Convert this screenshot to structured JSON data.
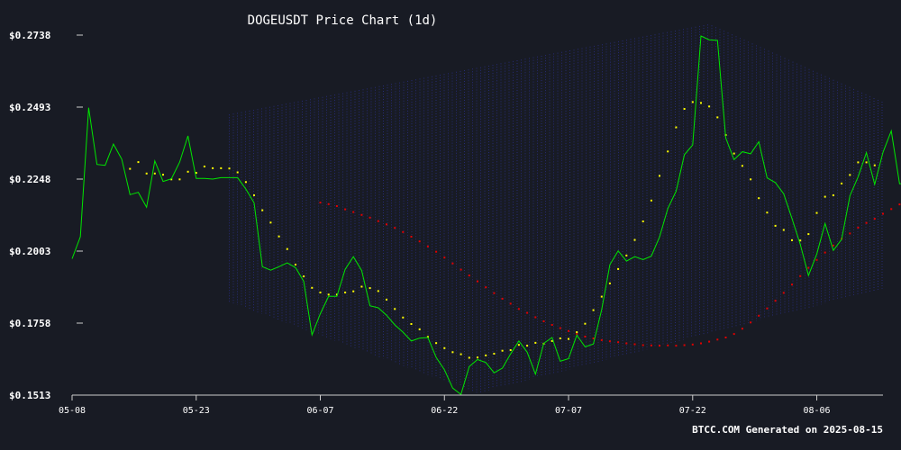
{
  "chart_data": {
    "type": "line",
    "title": "DOGEUSDT Price Chart (1d)",
    "footer": "BTCC.COM Generated on 2025-08-15",
    "ylim": [
      0.1513,
      0.2738
    ],
    "xlim": [
      "2025-05-08",
      "2025-08-14"
    ],
    "y_ticks": [
      "$0.2738",
      "$0.2493",
      "$0.2248",
      "$0.2003",
      "$0.1758",
      "$0.1513"
    ],
    "y_tick_values": [
      0.2738,
      0.2493,
      0.2248,
      0.2003,
      0.1758,
      0.1513
    ],
    "x_ticks": [
      "05-08",
      "05-23",
      "06-07",
      "06-22",
      "07-07",
      "07-22",
      "08-06"
    ],
    "x_tick_dates": [
      "2025-05-08",
      "2025-05-23",
      "2025-06-07",
      "2025-06-22",
      "2025-07-07",
      "2025-07-22",
      "2025-08-06"
    ],
    "grid": false,
    "legend": "none",
    "colors": {
      "background": "#181b24",
      "price": "#00e600",
      "ma_fast": "#ffff00",
      "ma_slow": "#e00000",
      "bands": "#2a2f8a",
      "text": "#ffffff",
      "axis": "#cccccc"
    },
    "series": [
      {
        "start_date": "2025-05-08",
        "values": [
          0.1977,
          0.2052,
          0.2491,
          0.2298,
          0.2295,
          0.2367,
          0.2316,
          0.2195,
          0.2203,
          0.2152,
          0.231,
          0.224,
          0.2249,
          0.2306,
          0.2395,
          0.225,
          0.225,
          0.2248,
          0.2253,
          0.2253,
          0.2253,
          0.2214,
          0.2167,
          0.195,
          0.1938,
          0.195,
          0.1963,
          0.1947,
          0.19,
          0.1718,
          0.179,
          0.1849,
          0.1849,
          0.1941,
          0.1984,
          0.1937,
          0.1817,
          0.181,
          0.1785,
          0.1752,
          0.1727,
          0.1697,
          0.1707,
          0.1709,
          0.1641,
          0.1599,
          0.1537,
          0.1515,
          0.161,
          0.1634,
          0.1624,
          0.1589,
          0.1605,
          0.1653,
          0.1697,
          0.1659,
          0.1584,
          0.1689,
          0.1709,
          0.1628,
          0.1637,
          0.1717,
          0.1677,
          0.1687,
          0.1804,
          0.1957,
          0.2004,
          0.1969,
          0.1984,
          0.1974,
          0.1986,
          0.2051,
          0.2148,
          0.2207,
          0.2331,
          0.2364,
          0.2735,
          0.2722,
          0.272,
          0.2388,
          0.2314,
          0.2341,
          0.2334,
          0.2375,
          0.2252,
          0.2236,
          0.2198,
          0.2114,
          0.2026,
          0.192,
          0.1993,
          0.2097,
          0.2005,
          0.2043,
          0.2191,
          0.2256,
          0.2338,
          0.223,
          0.2339,
          0.2412,
          0.2232,
          0.2234
        ]
      },
      {
        "start_date": "2025-05-15",
        "values": [
          0.2283,
          0.2306,
          0.2267,
          0.2267,
          0.2263,
          0.2247,
          0.2247,
          0.2273,
          0.2269,
          0.2291,
          0.2285,
          0.2285,
          0.2284,
          0.2271,
          0.2238,
          0.2193,
          0.2142,
          0.21,
          0.2053,
          0.201,
          0.1957,
          0.1917,
          0.1878,
          0.1862,
          0.1855,
          0.1855,
          0.1862,
          0.1866,
          0.1882,
          0.1877,
          0.1867,
          0.1838,
          0.1806,
          0.1777,
          0.1755,
          0.1737,
          0.1711,
          0.169,
          0.1673,
          0.1659,
          0.1652,
          0.164,
          0.1641,
          0.1648,
          0.1654,
          0.1664,
          0.1666,
          0.1684,
          0.1681,
          0.1691,
          0.1688,
          0.1697,
          0.1706,
          0.1704,
          0.1727,
          0.1756,
          0.1802,
          0.1848,
          0.1893,
          0.1942,
          0.1988,
          0.2041,
          0.2104,
          0.2175,
          0.2259,
          0.2342,
          0.2424,
          0.2487,
          0.251,
          0.2507,
          0.2495,
          0.2458,
          0.2398,
          0.2335,
          0.2293,
          0.2247,
          0.2183,
          0.2134,
          0.2089,
          0.2075,
          0.204,
          0.2039,
          0.2061,
          0.2133,
          0.2188,
          0.2193,
          0.2233,
          0.2262,
          0.2305,
          0.2305,
          0.2295
        ]
      },
      {
        "start_date": "2025-06-07",
        "values": [
          0.2168,
          0.2163,
          0.2156,
          0.2145,
          0.2136,
          0.2126,
          0.2117,
          0.2105,
          0.2094,
          0.2082,
          0.2068,
          0.2052,
          0.2036,
          0.2019,
          0.2001,
          0.1981,
          0.1961,
          0.194,
          0.192,
          0.19,
          0.188,
          0.186,
          0.1841,
          0.1824,
          0.1806,
          0.1793,
          0.1778,
          0.1764,
          0.1752,
          0.1741,
          0.1731,
          0.1721,
          0.1712,
          0.1706,
          0.17,
          0.1696,
          0.1693,
          0.1689,
          0.1686,
          0.1683,
          0.1682,
          0.1681,
          0.1682,
          0.1681,
          0.1683,
          0.1685,
          0.1689,
          0.1695,
          0.1702,
          0.1709,
          0.1721,
          0.1739,
          0.176,
          0.1783,
          0.1808,
          0.1834,
          0.1861,
          0.1889,
          0.1918,
          0.1946,
          0.1973,
          0.1998,
          0.2022,
          0.2045,
          0.2063,
          0.2083,
          0.2099,
          0.2113,
          0.213,
          0.2146,
          0.2162,
          0.2179,
          0.2193,
          0.2206,
          0.2222,
          0.2237,
          0.2249,
          0.2264,
          0.2279
        ]
      }
    ],
    "band_approx": {
      "start_date": "2025-05-27",
      "upper_start": 0.2468,
      "upper_peak_date": "2025-07-24",
      "upper_peak": 0.2775,
      "upper_end": 0.251,
      "lower_start": 0.183,
      "lower_min_date": "2025-06-26",
      "lower_min": 0.152,
      "lower_end": 0.1876,
      "end_date": "2025-08-14"
    }
  }
}
